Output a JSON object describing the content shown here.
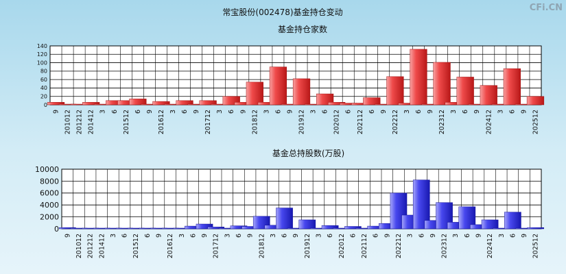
{
  "title": "常宝股份(002478)基金持仓变动",
  "watermark": "CFi.CN",
  "colors": {
    "red_bar": "#e63a3a",
    "blue_bar": "#3a3ae6",
    "grid": "#000000",
    "plot_bg": "#ffffff"
  },
  "chart_data": [
    {
      "type": "bar",
      "title": "基金持仓家数",
      "ylim": [
        0,
        140
      ],
      "yticks": [
        "0",
        "20",
        "40",
        "60",
        "80",
        "100",
        "120",
        "140"
      ],
      "categories": [
        "9",
        "201012",
        "201212",
        "201412",
        "3",
        "6",
        "201512",
        "6",
        "9",
        "201612",
        "3",
        "6",
        "9",
        "201712",
        "3",
        "6",
        "9",
        "201812",
        "3",
        "6",
        "9",
        "201912",
        "3",
        "6",
        "202012",
        "6",
        "202112",
        "6",
        "9",
        "202212",
        "3",
        "6",
        "9",
        "202312",
        "3",
        "6",
        "9",
        "202412",
        "3",
        "6",
        "9",
        "202512"
      ],
      "values": [
        6,
        1,
        1,
        6,
        1,
        10,
        10,
        14,
        1,
        8,
        1,
        10,
        1,
        10,
        1,
        20,
        6,
        54,
        6,
        90,
        1,
        62,
        1,
        26,
        6,
        4,
        4,
        17,
        1,
        67,
        4,
        132,
        1,
        101,
        6,
        66,
        1,
        46,
        1,
        86,
        1,
        20
      ]
    },
    {
      "type": "bar",
      "title": "基金总持股数(万股)",
      "ylim": [
        0,
        10000
      ],
      "yticks": [
        "0",
        "2000",
        "4000",
        "6000",
        "8000",
        "10000"
      ],
      "categories": [
        "9",
        "201012",
        "201212",
        "201412",
        "3",
        "6",
        "201512",
        "6",
        "9",
        "201612",
        "3",
        "6",
        "9",
        "201712",
        "3",
        "6",
        "9",
        "201812",
        "3",
        "6",
        "9",
        "201912",
        "3",
        "6",
        "202012",
        "6",
        "202112",
        "6",
        "9",
        "202212",
        "3",
        "6",
        "9",
        "202312",
        "3",
        "6",
        "9",
        "202412",
        "3",
        "6",
        "9",
        "202512"
      ],
      "values": [
        200,
        30,
        30,
        60,
        30,
        100,
        100,
        80,
        30,
        100,
        30,
        450,
        800,
        300,
        30,
        500,
        400,
        2100,
        600,
        3500,
        30,
        1500,
        80,
        550,
        80,
        400,
        30,
        450,
        900,
        6000,
        2300,
        8200,
        1400,
        4400,
        1100,
        3700,
        700,
        1500,
        30,
        2800,
        30,
        200
      ]
    }
  ]
}
